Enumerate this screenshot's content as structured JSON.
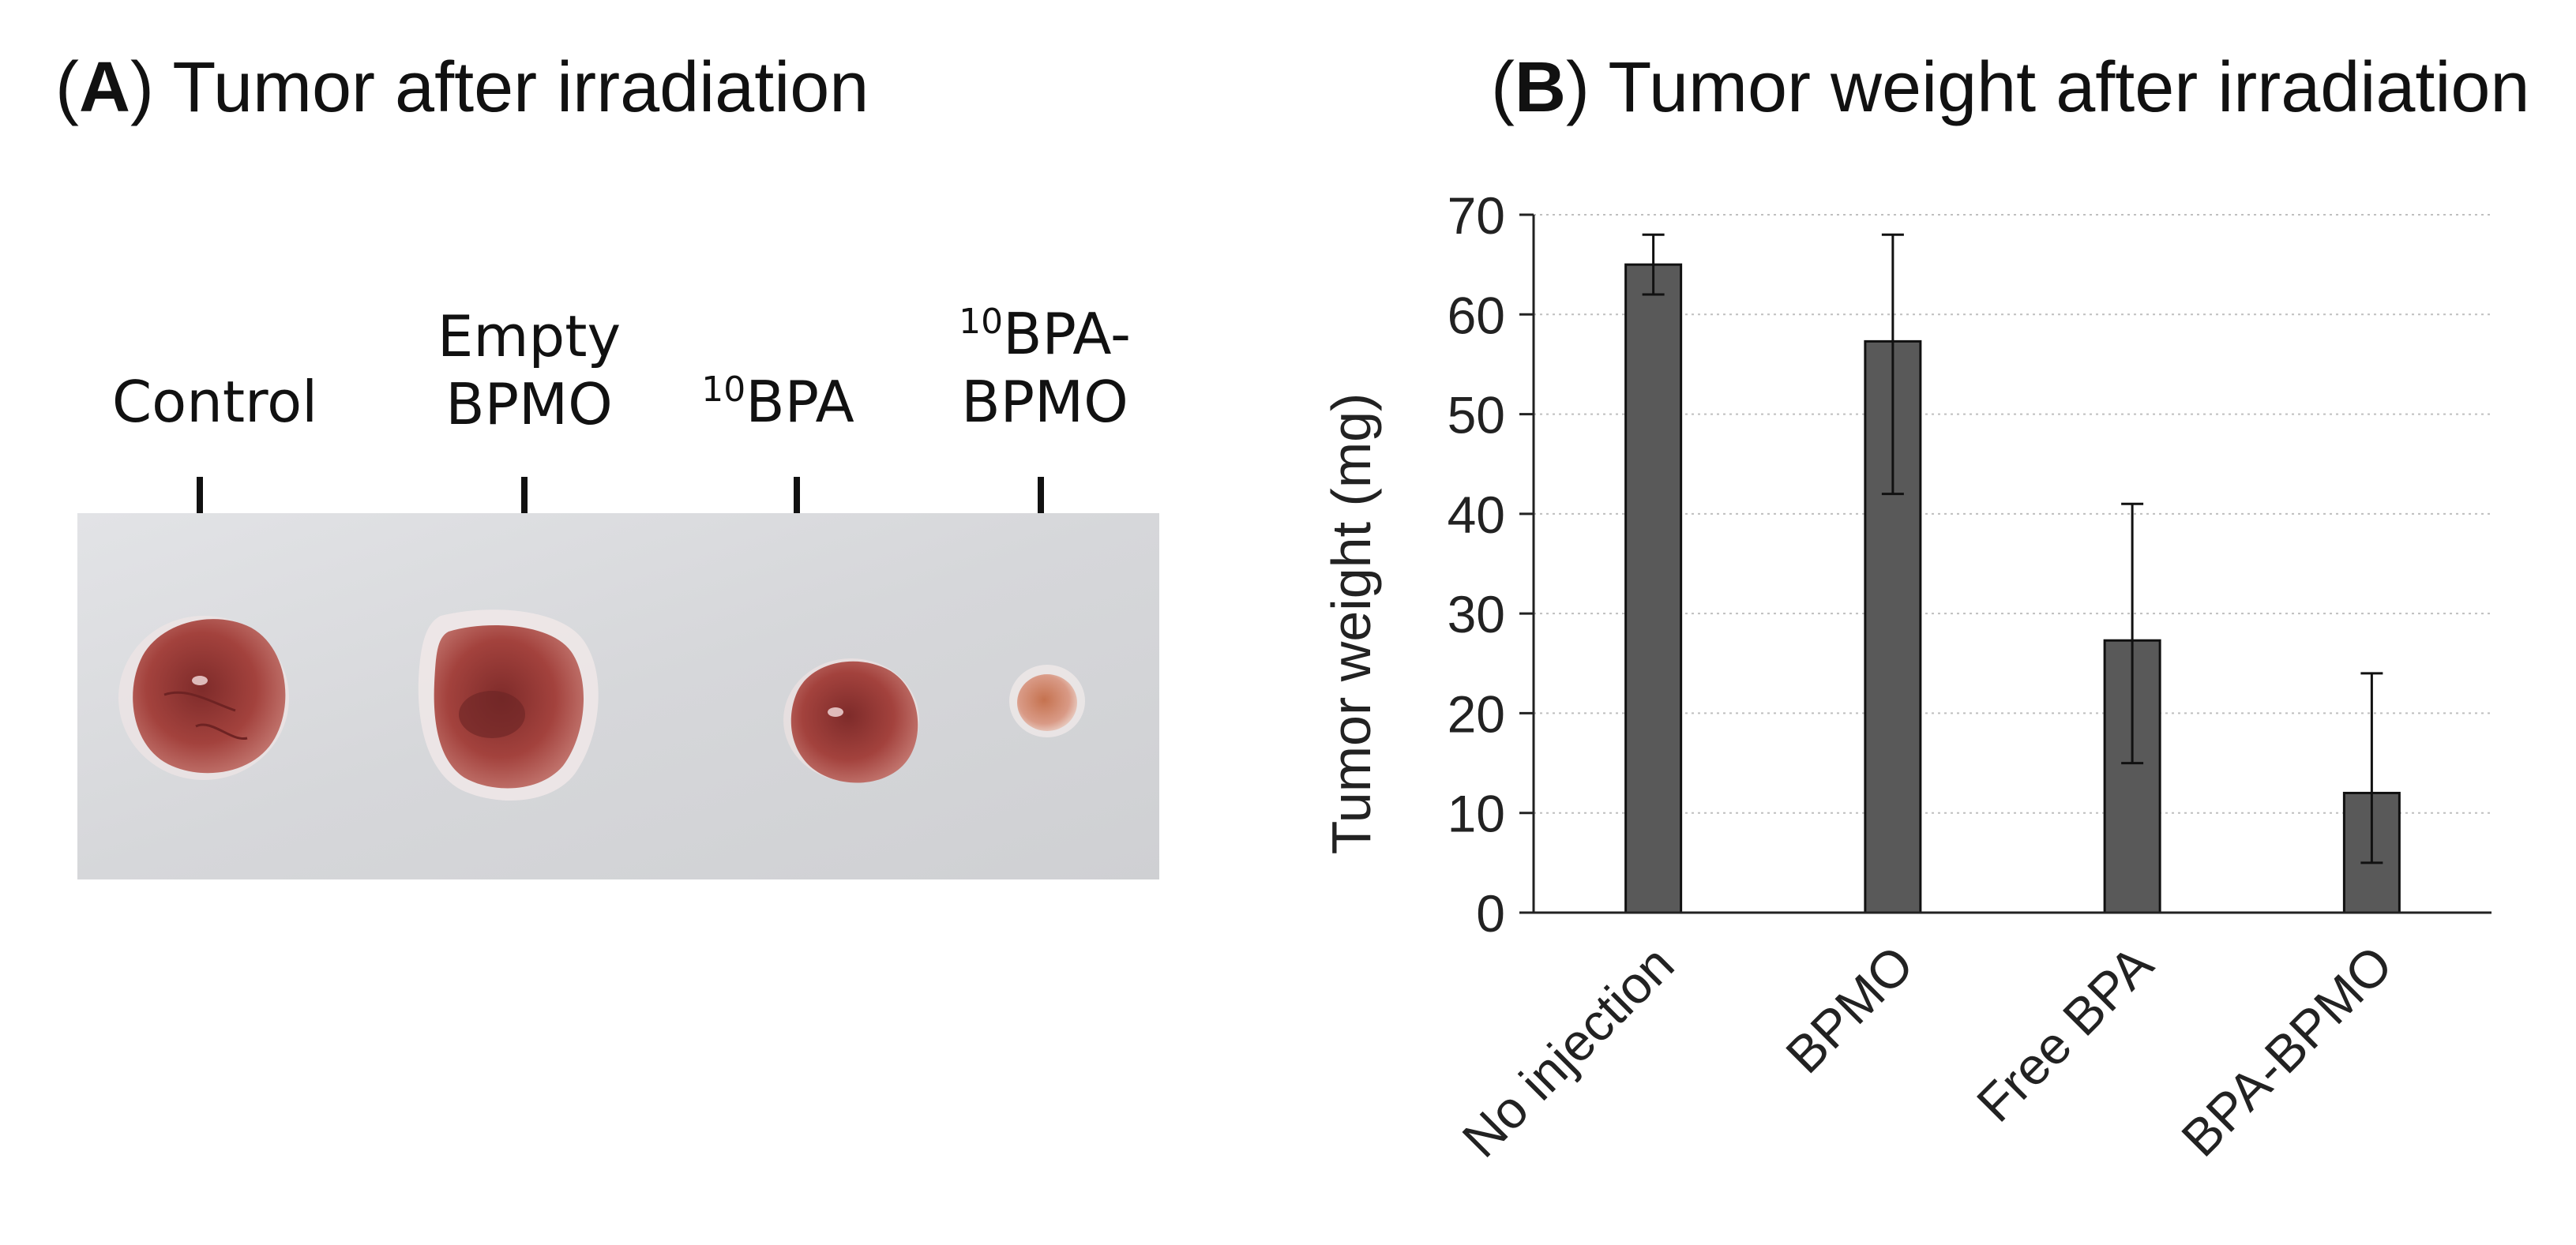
{
  "panel_a": {
    "letter": "A",
    "title": "Tumor after irradiation",
    "specimens": [
      {
        "lines": [
          "Control"
        ],
        "superscript": "",
        "size_word": "large"
      },
      {
        "lines": [
          "Empty",
          "BPMO"
        ],
        "superscript": "",
        "size_word": "large"
      },
      {
        "lines": [
          "BPA"
        ],
        "superscript": "10",
        "size_word": "medium"
      },
      {
        "lines": [
          "BPA-",
          "BPMO"
        ],
        "superscript": "10",
        "size_word": "small"
      }
    ],
    "colors": {
      "background_panel": "#d8d9dc",
      "tumor": "#9b3a36"
    }
  },
  "panel_b": {
    "letter": "B",
    "title": "Tumor weight after irradiation"
  },
  "chart_data": {
    "type": "bar",
    "title": "Tumor weight after irradiation",
    "xlabel": "",
    "ylabel": "Tumor weight (mg)",
    "categories": [
      "No injection",
      "BPMO",
      "Free BPA",
      "BPA-BPMO"
    ],
    "values": [
      65,
      57.3,
      27.3,
      12
    ],
    "error_low": [
      62,
      42,
      15,
      5
    ],
    "error_high": [
      68,
      68,
      41,
      24
    ],
    "ylim": [
      0,
      70
    ],
    "yticks": [
      0,
      10,
      20,
      30,
      40,
      50,
      60,
      70
    ],
    "grid": true,
    "legend": "none",
    "bar_color": "#595959"
  }
}
